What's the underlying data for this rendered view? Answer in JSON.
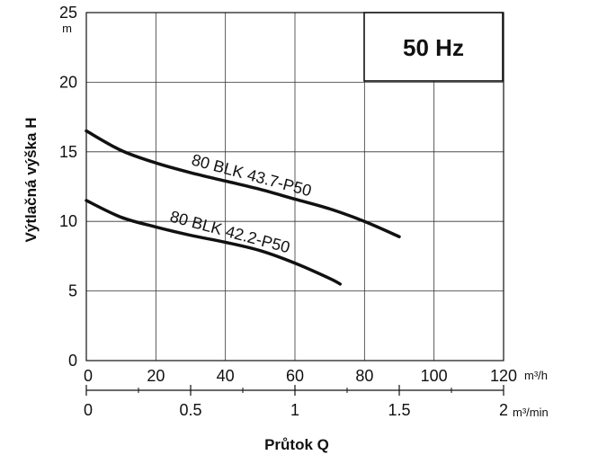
{
  "chart_data": {
    "type": "line",
    "title": "50 Hz",
    "xlabel": "Průtok Q",
    "ylabel": "Výtlačná výška H",
    "x_unit": "m³/h",
    "x2_unit": "m³/min",
    "y_unit": "m",
    "xlim": [
      0,
      120
    ],
    "ylim": [
      0,
      25
    ],
    "x_ticks": [
      "0",
      "20",
      "40",
      "60",
      "80",
      "100",
      "120"
    ],
    "x_tick_values": [
      0,
      20,
      40,
      60,
      80,
      100,
      120
    ],
    "x2_ticks": [
      "0",
      "0.5",
      "1",
      "1.5",
      "2"
    ],
    "x2_tick_values": [
      0,
      0.5,
      1,
      1.5,
      2
    ],
    "y_ticks": [
      "0",
      "5",
      "10",
      "15",
      "20",
      "25"
    ],
    "y_tick_values": [
      0,
      5,
      10,
      15,
      20,
      25
    ],
    "grid": true,
    "series": [
      {
        "name": "80 BLK 43.7-P50",
        "x": [
          0,
          10,
          20,
          30,
          40,
          50,
          60,
          70,
          80,
          90
        ],
        "y": [
          16.5,
          15.1,
          14.2,
          13.5,
          12.9,
          12.3,
          11.6,
          10.9,
          10.0,
          8.9
        ]
      },
      {
        "name": "80 BLK 42.2-P50",
        "x": [
          0,
          10,
          20,
          30,
          40,
          50,
          60,
          70,
          73
        ],
        "y": [
          11.5,
          10.3,
          9.6,
          9.0,
          8.5,
          7.9,
          7.0,
          5.9,
          5.5
        ]
      }
    ]
  }
}
